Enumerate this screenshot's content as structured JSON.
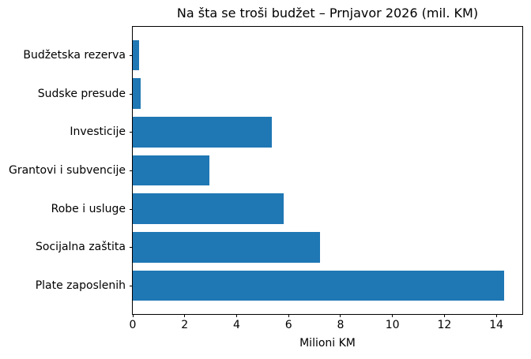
{
  "chart_data": {
    "type": "bar",
    "orientation": "horizontal",
    "title": "Na šta se troši budžet – Prnjavor 2026 (mil. KM)",
    "xlabel": "Milioni KM",
    "ylabel": "",
    "categories_top_to_bottom": [
      "Budžetska rezerva",
      "Sudske presude",
      "Investicije",
      "Grantovi i subvencije",
      "Robe i usluge",
      "Socijalna zaštita",
      "Plate zaposlenih"
    ],
    "values_top_to_bottom": [
      0.25,
      0.3,
      5.35,
      2.95,
      5.8,
      7.2,
      14.3
    ],
    "x_ticks": [
      0,
      2,
      4,
      6,
      8,
      10,
      12,
      14
    ],
    "xlim": [
      0,
      15
    ],
    "bar_color": "#1f77b4",
    "bar_height_fraction": 0.8,
    "grid": false,
    "legend": false,
    "spine_color": "#000000",
    "background_color": "#ffffff"
  }
}
